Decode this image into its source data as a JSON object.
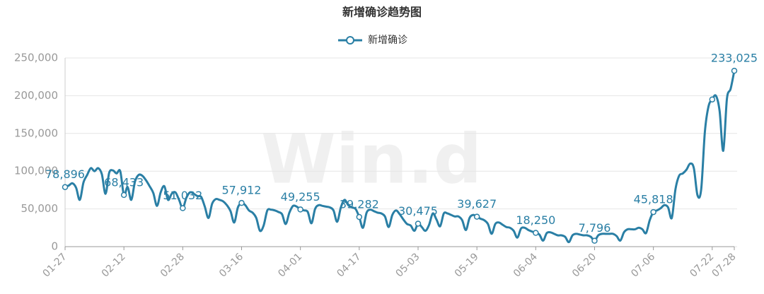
{
  "chart_data": {
    "type": "line",
    "title": "新增确诊趋势图",
    "watermark": "Win.d",
    "legend": "top",
    "grid": true,
    "categories": [
      "01-27",
      null,
      null,
      null,
      null,
      null,
      null,
      null,
      null,
      null,
      null,
      null,
      null,
      null,
      null,
      null,
      "02-12",
      null,
      null,
      null,
      null,
      null,
      null,
      null,
      null,
      null,
      null,
      null,
      null,
      null,
      null,
      null,
      "02-28",
      null,
      null,
      null,
      null,
      null,
      null,
      null,
      null,
      null,
      null,
      null,
      null,
      null,
      null,
      null,
      "03-16",
      null,
      null,
      null,
      null,
      null,
      null,
      null,
      null,
      null,
      null,
      null,
      null,
      null,
      null,
      null,
      "04-01",
      null,
      null,
      null,
      null,
      null,
      null,
      null,
      null,
      null,
      null,
      null,
      null,
      null,
      null,
      null,
      "04-17",
      null,
      null,
      null,
      null,
      null,
      null,
      null,
      null,
      null,
      null,
      null,
      null,
      null,
      null,
      null,
      "05-03",
      null,
      null,
      null,
      null,
      null,
      null,
      null,
      null,
      null,
      null,
      null,
      null,
      null,
      null,
      null,
      "05-19",
      null,
      null,
      null,
      null,
      null,
      null,
      null,
      null,
      null,
      null,
      null,
      null,
      null,
      null,
      null,
      "06-04",
      null,
      null,
      null,
      null,
      null,
      null,
      null,
      null,
      null,
      null,
      null,
      null,
      null,
      null,
      null,
      "06-20",
      null,
      null,
      null,
      null,
      null,
      null,
      null,
      null,
      null,
      null,
      null,
      null,
      null,
      null,
      null,
      "07-06",
      null,
      null,
      null,
      null,
      null,
      null,
      null,
      null,
      null,
      null,
      null,
      null,
      null,
      null,
      null,
      "07-22",
      null,
      null,
      null,
      null,
      null,
      "07-28"
    ],
    "series": [
      {
        "name": "新增确诊",
        "color": "#2a7fa5",
        "values": [
          78896,
          81000,
          84000,
          78000,
          62000,
          85000,
          95000,
          104000,
          100000,
          104000,
          96000,
          70000,
          98000,
          101000,
          97000,
          100000,
          68433,
          79000,
          62000,
          86000,
          95000,
          94000,
          88000,
          80000,
          71000,
          54000,
          72000,
          80000,
          62000,
          70000,
          72000,
          62000,
          51032,
          65000,
          72000,
          70000,
          67000,
          66000,
          53000,
          38000,
          57000,
          63000,
          62000,
          60000,
          55000,
          47000,
          32000,
          52000,
          57912,
          55000,
          48000,
          45000,
          38000,
          21000,
          28000,
          48000,
          49000,
          48000,
          46000,
          43000,
          30000,
          45000,
          54000,
          53000,
          49255,
          48000,
          46000,
          31000,
          50000,
          55000,
          54000,
          53000,
          52000,
          48000,
          33000,
          52000,
          62000,
          55000,
          52000,
          50000,
          39282,
          25000,
          45000,
          49000,
          47000,
          45000,
          44000,
          40000,
          26000,
          42000,
          48000,
          43000,
          36000,
          30000,
          28000,
          21000,
          30475,
          26000,
          21000,
          29000,
          44000,
          36000,
          27000,
          44000,
          44000,
          42000,
          40000,
          40000,
          35000,
          22000,
          38000,
          42000,
          39627,
          37000,
          35000,
          30000,
          17000,
          30000,
          32000,
          29000,
          26000,
          25000,
          21000,
          12000,
          24000,
          25000,
          22000,
          20000,
          18250,
          16000,
          8000,
          18000,
          19000,
          17000,
          15000,
          15000,
          13000,
          6000,
          15000,
          17000,
          16000,
          15000,
          15000,
          13000,
          7796,
          15000,
          17000,
          17000,
          17000,
          17000,
          14000,
          8000,
          19000,
          23000,
          23000,
          23000,
          25000,
          23000,
          18000,
          35000,
          45818,
          48000,
          51000,
          55000,
          52000,
          38000,
          76000,
          94000,
          97000,
          102000,
          110000,
          104000,
          68000,
          76000,
          152000,
          186000,
          195000,
          200000,
          180000,
          127000,
          196000,
          209000,
          233025
        ],
        "value_labels": [
          "78,896",
          null,
          null,
          null,
          null,
          null,
          null,
          null,
          null,
          null,
          null,
          null,
          null,
          null,
          null,
          null,
          "68,433",
          null,
          null,
          null,
          null,
          null,
          null,
          null,
          null,
          null,
          null,
          null,
          null,
          null,
          null,
          null,
          "51,032",
          null,
          null,
          null,
          null,
          null,
          null,
          null,
          null,
          null,
          null,
          null,
          null,
          null,
          null,
          null,
          "57,912",
          null,
          null,
          null,
          null,
          null,
          null,
          null,
          null,
          null,
          null,
          null,
          null,
          null,
          null,
          null,
          "49,255",
          null,
          null,
          null,
          null,
          null,
          null,
          null,
          null,
          null,
          null,
          null,
          null,
          null,
          null,
          null,
          "39,282",
          null,
          null,
          null,
          null,
          null,
          null,
          null,
          null,
          null,
          null,
          null,
          null,
          null,
          null,
          null,
          "30,475",
          null,
          null,
          null,
          null,
          null,
          null,
          null,
          null,
          null,
          null,
          null,
          null,
          null,
          null,
          null,
          "39,627",
          null,
          null,
          null,
          null,
          null,
          null,
          null,
          null,
          null,
          null,
          null,
          null,
          null,
          null,
          null,
          "18,250",
          null,
          null,
          null,
          null,
          null,
          null,
          null,
          null,
          null,
          null,
          null,
          null,
          null,
          null,
          null,
          "7,796",
          null,
          null,
          null,
          null,
          null,
          null,
          null,
          null,
          null,
          null,
          null,
          null,
          null,
          null,
          null,
          "45,818",
          null,
          null,
          null,
          null,
          null,
          null,
          null,
          null,
          null,
          null,
          null,
          null,
          null,
          null,
          null,
          null,
          null,
          null,
          null,
          null,
          null,
          "233,025"
        ]
      }
    ],
    "ylim": [
      0,
      250000
    ],
    "yticks": [
      0,
      {
        "value": 50000,
        "label": "50,000"
      },
      {
        "value": 100000,
        "label": "100,000"
      },
      {
        "value": 150000,
        "label": "150,000"
      },
      {
        "value": 200000,
        "label": "200,000"
      },
      {
        "value": 250000,
        "label": "250,000"
      }
    ]
  }
}
